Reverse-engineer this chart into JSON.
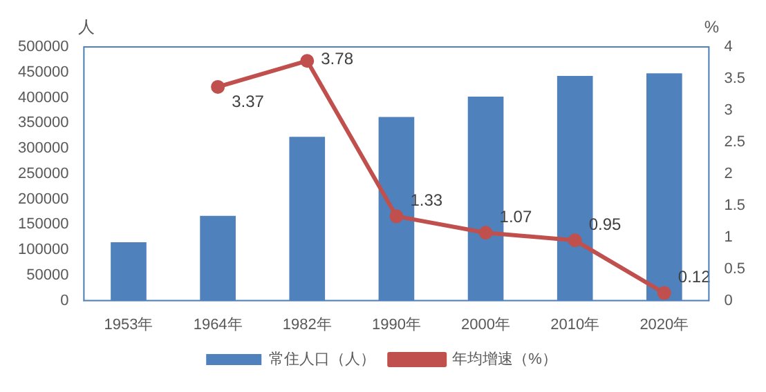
{
  "chart_data": {
    "type": "bar",
    "ylabel": "人",
    "y2label": "%",
    "categories": [
      "1953年",
      "1964年",
      "1982年",
      "1990年",
      "2000年",
      "2010年",
      "2020年"
    ],
    "series": [
      {
        "name": "常住人口（人）",
        "color": "#4f81bd",
        "values": [
          115000,
          167000,
          323000,
          362000,
          402000,
          443000,
          448000
        ]
      },
      {
        "name": "年均增速（%）",
        "type": "line",
        "axis": "y2",
        "color": "#c0504d",
        "marker": "circle",
        "values": [
          null,
          3.37,
          3.78,
          1.33,
          1.07,
          0.95,
          0.12
        ],
        "value_labels": [
          null,
          "3.37",
          "3.78",
          "1.33",
          "1.07",
          "0.95",
          "0.12"
        ]
      }
    ],
    "ylim": [
      0,
      500000
    ],
    "yticks": [
      0,
      50000,
      100000,
      150000,
      200000,
      250000,
      300000,
      350000,
      400000,
      450000,
      500000
    ],
    "y2lim": [
      0,
      4
    ],
    "y2ticks": [
      0,
      0.5,
      1,
      1.5,
      2,
      2.5,
      3,
      3.5,
      4
    ],
    "grid": false,
    "legend": "bottom"
  }
}
